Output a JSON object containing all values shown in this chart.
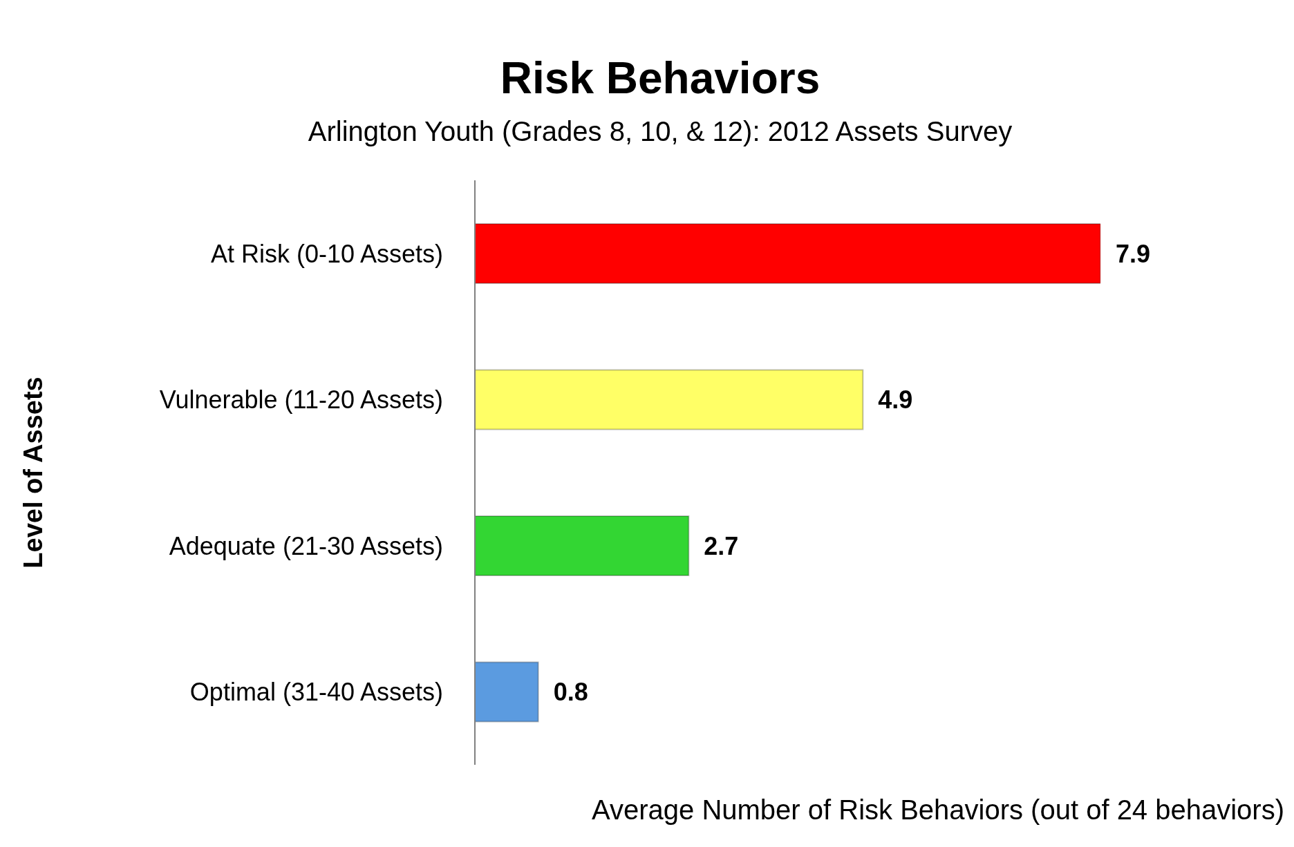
{
  "chart_data": {
    "type": "bar",
    "orientation": "horizontal",
    "title": "Risk Behaviors",
    "subtitle": "Arlington Youth (Grades 8, 10, & 12): 2012 Assets Survey",
    "xlabel": "Average Number of Risk Behaviors (out of 24 behaviors)",
    "ylabel": "Level of Assets",
    "categories": [
      "At Risk  (0-10 Assets)",
      "Vulnerable  (11-20 Assets)",
      "Adequate  (21-30 Assets)",
      "Optimal  (31-40 Assets)"
    ],
    "values": [
      7.9,
      4.9,
      2.7,
      0.8
    ],
    "colors": [
      "#ff0000",
      "#ffff66",
      "#33d633",
      "#5b9be0"
    ],
    "data_labels": true,
    "grid": false,
    "legend": false
  }
}
